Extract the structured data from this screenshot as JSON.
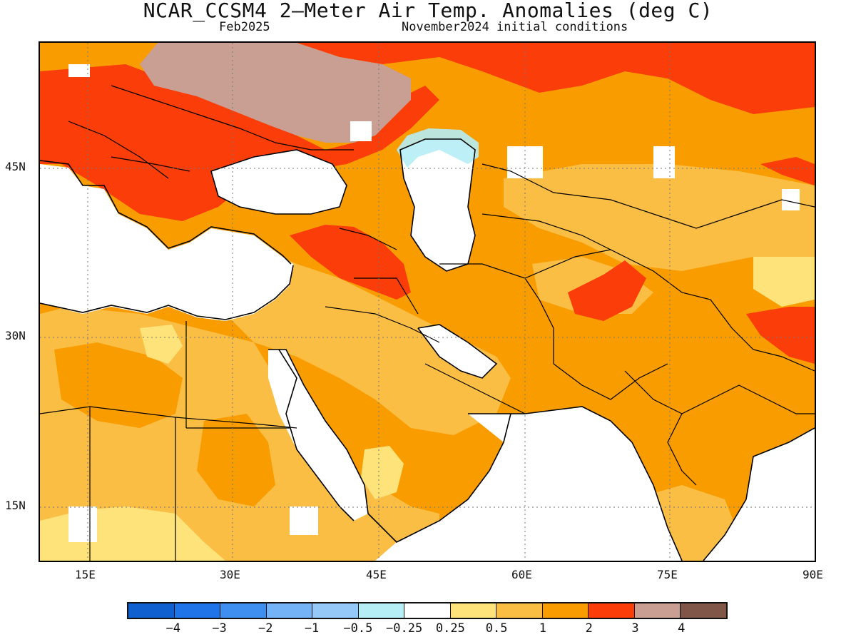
{
  "title": "NCAR_CCSM4 2–Meter Air Temp. Anomalies (deg C)",
  "valid_month": "Feb2025",
  "init_conditions": "November2024 initial conditions",
  "map": {
    "lat_labels": [
      "45N",
      "30N",
      "15N"
    ],
    "lon_labels": [
      "15E",
      "30E",
      "45E",
      "60E",
      "75E",
      "90E"
    ],
    "gridlines": "dotted"
  },
  "legend": {
    "colors": [
      "#1060d0",
      "#1f75e8",
      "#3f8ff0",
      "#74b3f5",
      "#95c9f7",
      "#b5eef5",
      "#ffffff",
      "#fde37a",
      "#fbbe45",
      "#f99c00",
      "#fb3d0a",
      "#c99e93",
      "#7f5647"
    ],
    "labels": [
      "−4",
      "−3",
      "−2",
      "−1",
      "−0.5",
      "−0.25",
      "0.25",
      "0.5",
      "1",
      "2",
      "3",
      "4"
    ]
  }
}
